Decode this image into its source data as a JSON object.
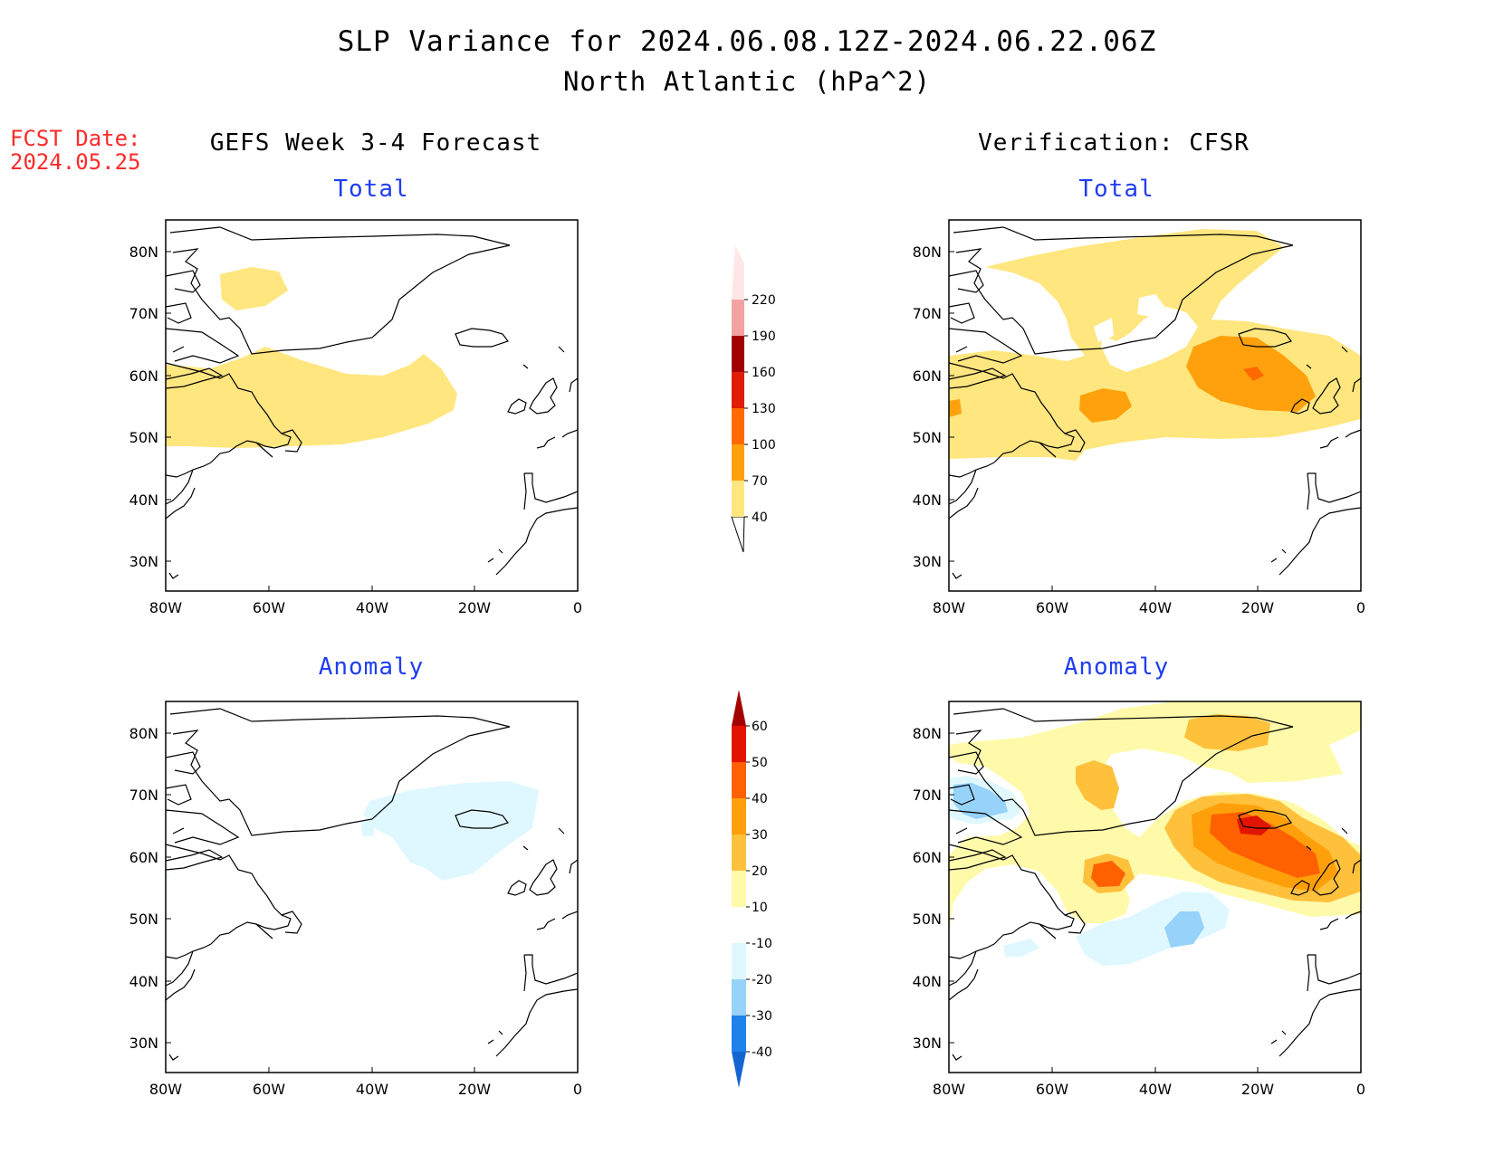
{
  "header": {
    "title_line1": "SLP Variance for 2024.06.08.12Z-2024.06.22.06Z",
    "title_line2": "North Atlantic (hPa^2)",
    "fcst_date_label": "FCST Date:",
    "fcst_date_value": "2024.05.25"
  },
  "columns": {
    "left": "GEFS Week 3-4 Forecast",
    "right": "Verification: CFSR"
  },
  "panels": {
    "total_label": "Total",
    "anomaly_label": "Anomaly"
  },
  "map_axes": {
    "lat_labels": [
      "80N",
      "70N",
      "60N",
      "50N",
      "40N",
      "30N"
    ],
    "lon_labels": [
      "80W",
      "60W",
      "40W",
      "20W",
      "0"
    ]
  },
  "colorbars": {
    "total": {
      "ticks": [
        "40",
        "70",
        "100",
        "130",
        "160",
        "190",
        "220"
      ],
      "colors": [
        "#ffe67f",
        "#ffa10c",
        "#ff6a00",
        "#e01b06",
        "#a00000",
        "#f4a1a1",
        "#ffe6e6"
      ]
    },
    "anomaly": {
      "ticks": [
        "-40",
        "-30",
        "-20",
        "-10",
        "10",
        "20",
        "30",
        "40",
        "50",
        "60"
      ],
      "colors": [
        "#1464d2",
        "#1e82eb",
        "#96d2fa",
        "#dff8ff",
        "#ffffff",
        "#fffaaa",
        "#ffc13c",
        "#ffa00a",
        "#ff6000",
        "#e11400",
        "#a50000"
      ]
    }
  }
}
